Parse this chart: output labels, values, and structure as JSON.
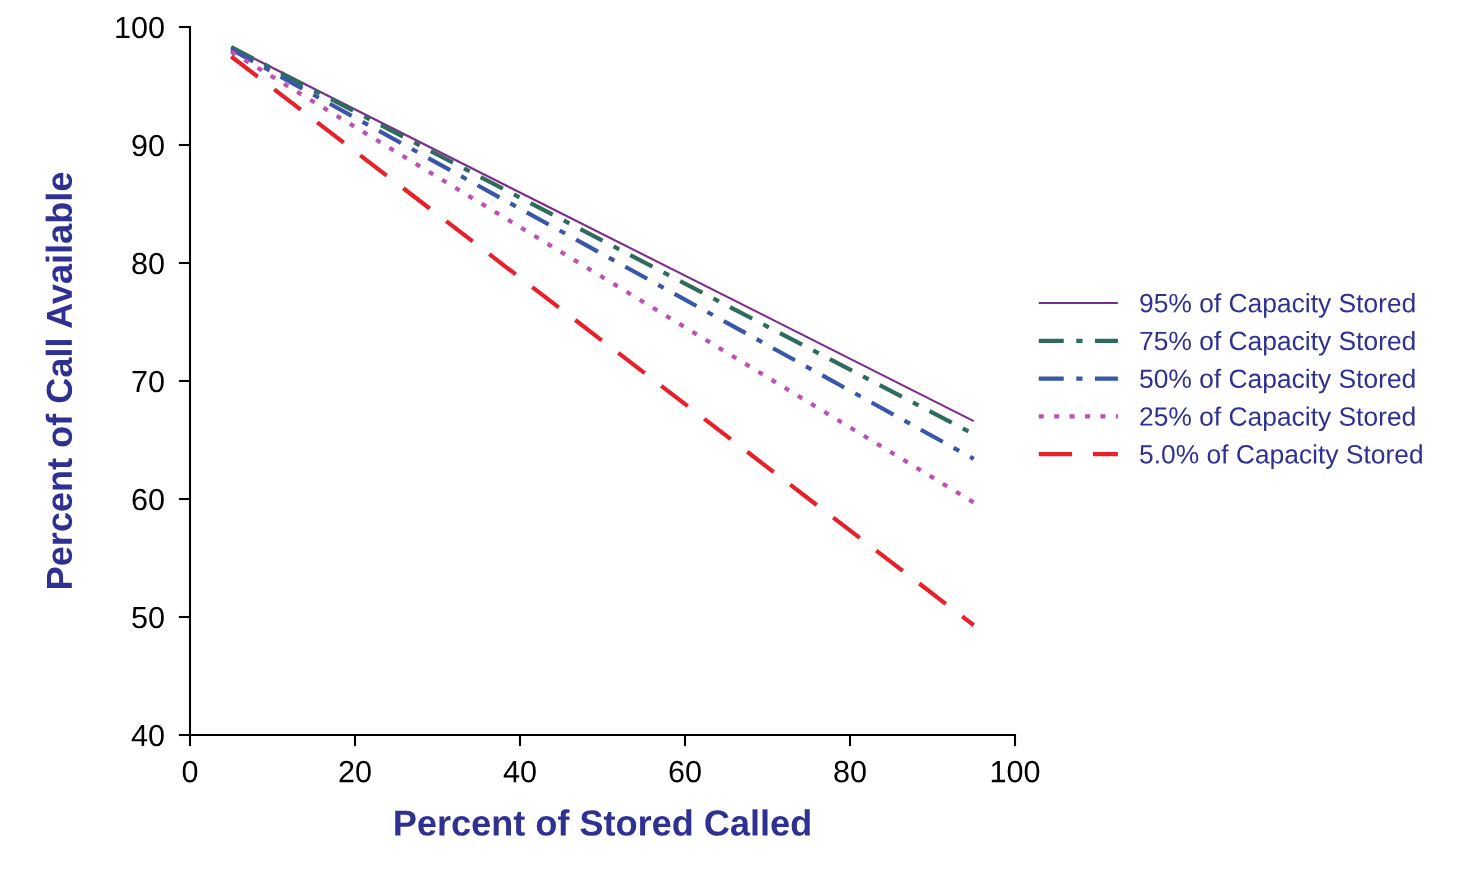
{
  "chart_data": {
    "type": "line",
    "xlabel": "Percent of Stored Called",
    "ylabel": "Percent of Call Available",
    "x": [
      5,
      95
    ],
    "series": [
      {
        "name": "95% of Capacity Stored",
        "color": "#7b2d8b",
        "line_style": "solid",
        "values": [
          98.3,
          66.6
        ]
      },
      {
        "name": "75% of Capacity Stored",
        "color": "#2e6b5e",
        "line_style": "dashdot",
        "values": [
          98.3,
          65.5
        ]
      },
      {
        "name": "50% of Capacity Stored",
        "color": "#3a56a8",
        "line_style": "dashdot",
        "values": [
          98.1,
          63.4
        ]
      },
      {
        "name": "25% of Capacity Stored",
        "color": "#c050b0",
        "line_style": "dotted",
        "values": [
          97.9,
          59.7
        ]
      },
      {
        "name": "5.0% of Capacity Stored",
        "color": "#e8202a",
        "line_style": "dashed",
        "values": [
          97.5,
          49.3
        ]
      }
    ],
    "xlim": [
      0,
      100
    ],
    "xticks": [
      0,
      20,
      40,
      60,
      80,
      100
    ],
    "ylim": [
      40,
      100
    ],
    "yticks": [
      40,
      50,
      60,
      70,
      80,
      90,
      100
    ],
    "grid": false,
    "legend": "right",
    "marker": "none"
  }
}
